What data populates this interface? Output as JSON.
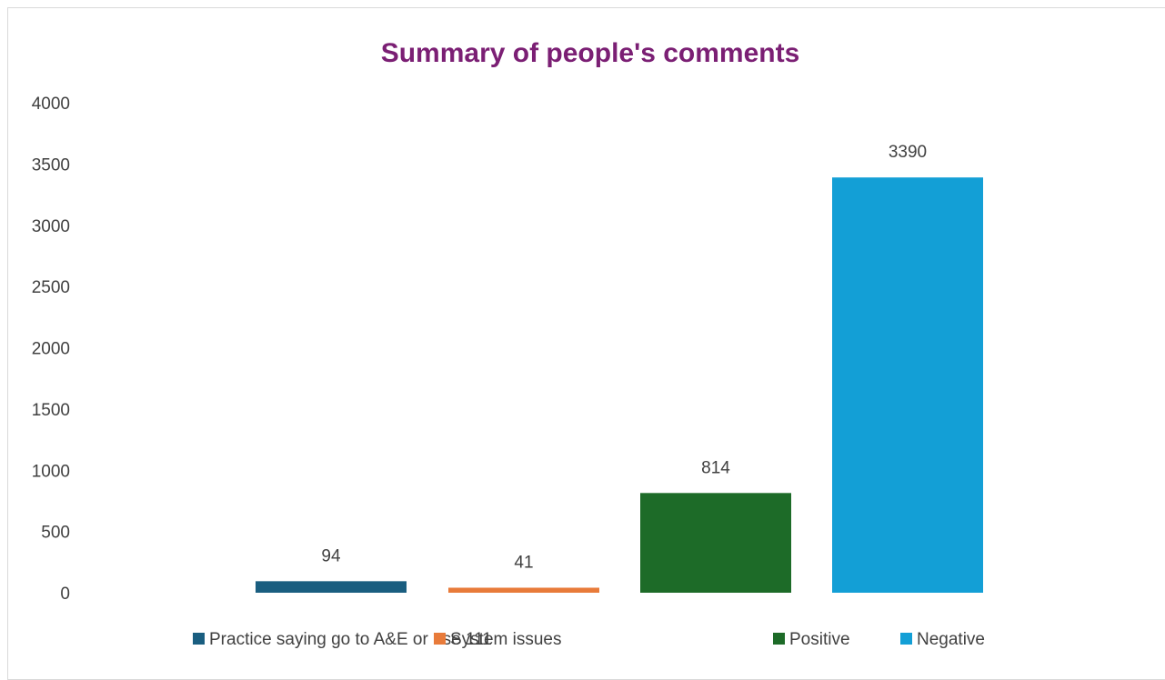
{
  "chart_data": {
    "type": "bar",
    "title": "Summary of people's comments",
    "title_color": "#7b1f74",
    "xlabel": "",
    "ylabel": "",
    "ylim": [
      0,
      4000
    ],
    "y_ticks": [
      0,
      500,
      1000,
      1500,
      2000,
      2500,
      3000,
      3500,
      4000
    ],
    "grid": false,
    "legend_position": "bottom",
    "series": [
      {
        "name": "Practice saying go to A&E or use 111",
        "value": 94,
        "color": "#1a5e80"
      },
      {
        "name": "System issues",
        "value": 41,
        "color": "#e87b3a"
      },
      {
        "name": "Positive",
        "value": 814,
        "color": "#1d6b28"
      },
      {
        "name": "Negative",
        "value": 3390,
        "color": "#139fd6"
      }
    ]
  }
}
